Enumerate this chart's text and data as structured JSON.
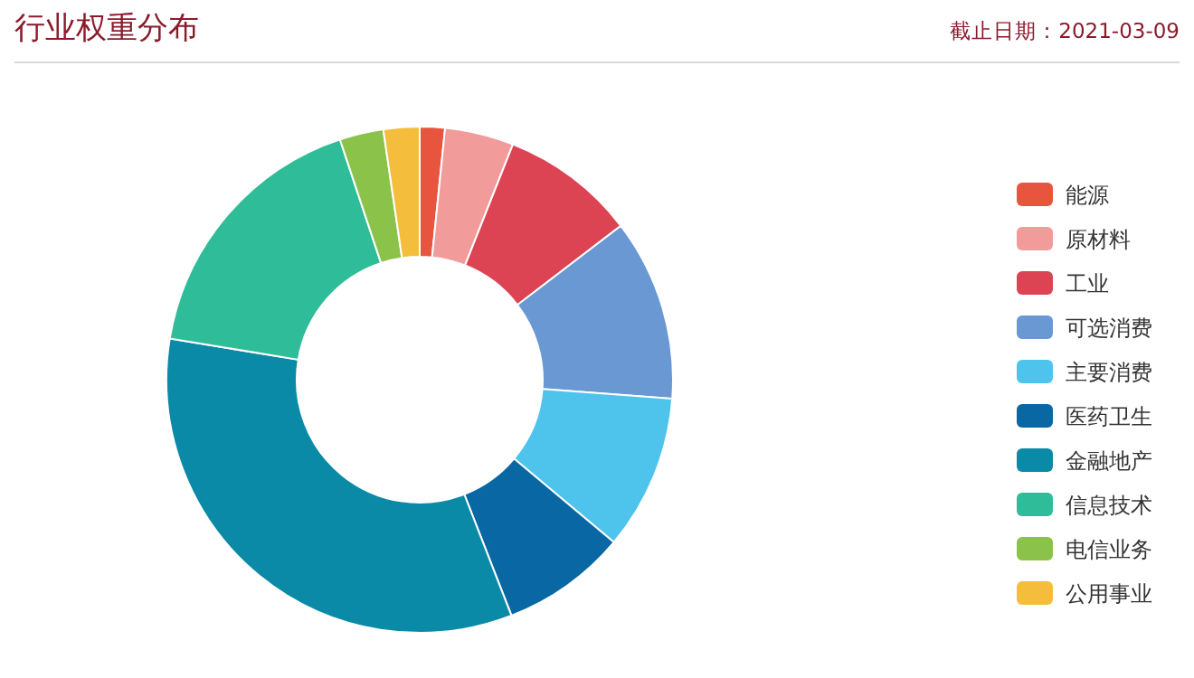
{
  "chart_data": {
    "type": "donut",
    "title": "行业权重分布",
    "subtitle": "截止日期：2021-03-09",
    "categories": [
      "能源",
      "原材料",
      "工业",
      "可选消费",
      "主要消费",
      "医药卫生",
      "金融地产",
      "信息技术",
      "电信业务",
      "公用事业"
    ],
    "values": [
      1.6,
      4.4,
      8.6,
      11.6,
      9.9,
      8.0,
      33.5,
      17.3,
      2.8,
      2.3
    ],
    "colors": [
      "#e8553e",
      "#f29b9b",
      "#dc4453",
      "#6a98d3",
      "#4ec4ec",
      "#0967a4",
      "#0a8aa6",
      "#2fbc98",
      "#8bc34a",
      "#f5bd3c"
    ],
    "legend": "right"
  }
}
